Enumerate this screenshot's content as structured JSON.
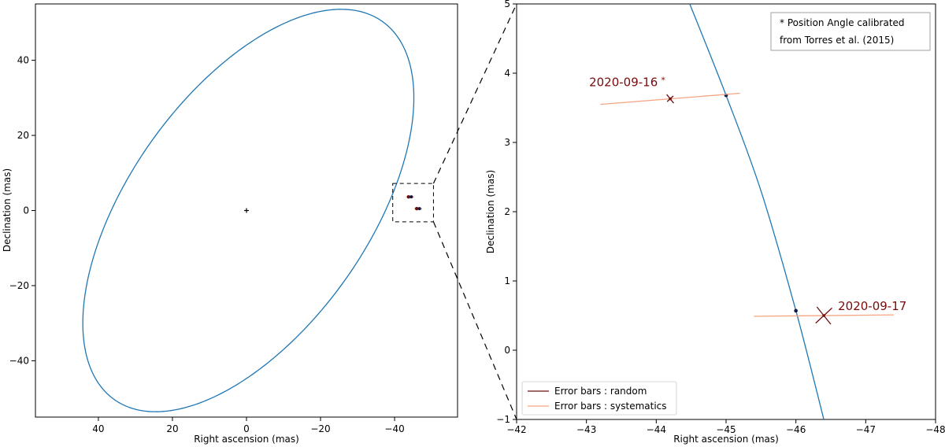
{
  "colors": {
    "orbit": "#1f77b4",
    "random": "#6b0f0f",
    "systematic": "#f4a582",
    "model_point": "#0b1a4a",
    "star": "#000000"
  },
  "chart_data": [
    {
      "type": "scatter",
      "panel": "overview",
      "xlabel": "Right ascension (mas)",
      "ylabel": "Declination (mas)",
      "xlim": [
        57,
        -57
      ],
      "ylim": [
        -55,
        55
      ],
      "x_ticks": [
        40,
        20,
        0,
        -20,
        -40
      ],
      "x_tick_labels": [
        "40",
        "20",
        "0",
        "−20",
        "−40"
      ],
      "y_ticks": [
        -40,
        -20,
        0,
        20,
        40
      ],
      "y_tick_labels": [
        "−40",
        "−20",
        "0",
        "20",
        "40"
      ],
      "grid": false,
      "orbit_ellipse": {
        "center": [
          -0.5,
          0
        ],
        "semi_major": 62,
        "semi_minor": 32,
        "rotation_deg": -54
      },
      "primary_star": [
        0,
        0
      ],
      "observations": [
        {
          "x": -44.2,
          "y": 3.63
        },
        {
          "x": -46.4,
          "y": 0.5
        }
      ],
      "zoom_box": {
        "x": [
          -39.5,
          -50.5
        ],
        "y": [
          -3.0,
          7.2
        ]
      }
    },
    {
      "type": "scatter",
      "panel": "zoom",
      "xlabel": "Right ascension (mas)",
      "ylabel": "Declination (mas)",
      "xlim": [
        -42,
        -48
      ],
      "ylim": [
        -1,
        5
      ],
      "x_ticks": [
        -42,
        -43,
        -44,
        -45,
        -46,
        -47,
        -48
      ],
      "x_tick_labels": [
        "−42",
        "−43",
        "−44",
        "−45",
        "−46",
        "−47",
        "−48"
      ],
      "y_ticks": [
        -1,
        0,
        1,
        2,
        3,
        4,
        5
      ],
      "y_tick_labels": [
        "−1",
        "0",
        "1",
        "2",
        "3",
        "4",
        "5"
      ],
      "grid": false,
      "orbit_path": [
        {
          "x": -44.48,
          "y": 5.0
        },
        {
          "x": -45.0,
          "y": 3.68
        },
        {
          "x": -45.5,
          "y": 2.3
        },
        {
          "x": -46.0,
          "y": 0.57
        },
        {
          "x": -46.4,
          "y": -1.0
        }
      ],
      "model_points": [
        {
          "x": -45.0,
          "y": 3.68
        },
        {
          "x": -46.0,
          "y": 0.57
        }
      ],
      "observations": [
        {
          "date": "2020-09-16",
          "x": -44.2,
          "y": 3.63,
          "systematic_bar": {
            "from": [
              -43.2,
              3.55
            ],
            "to": [
              -45.2,
              3.71
            ]
          },
          "random_bar_half": {
            "major": 0.08,
            "minor": 0.06
          },
          "flag": "*"
        },
        {
          "date": "2020-09-17",
          "x": -46.4,
          "y": 0.5,
          "systematic_bar": {
            "from": [
              -45.4,
              0.49
            ],
            "to": [
              -47.4,
              0.51
            ]
          },
          "random_bar_half": {
            "major": 0.16,
            "minor": 0.16
          }
        }
      ],
      "note_lines": [
        "* Position Angle calibrated",
        "from Torres et al. (2015)"
      ],
      "legend": {
        "placement": "lower-left",
        "entries": [
          {
            "label": "Error bars : random",
            "series": "random"
          },
          {
            "label": "Error bars : systematics",
            "series": "systematic"
          }
        ]
      }
    }
  ]
}
